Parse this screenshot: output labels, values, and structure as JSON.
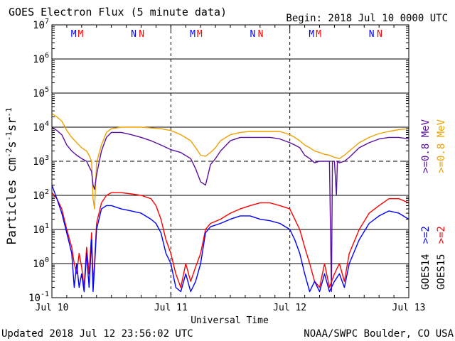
{
  "header": {
    "title": "GOES Electron Flux (5 minute data)",
    "begin": "Begin: 2018 Jul 10 0000 UTC"
  },
  "footer": {
    "updated": "Updated 2018 Jul 12 23:56:02 UTC",
    "credit": "NOAA/SWPC Boulder, CO USA"
  },
  "colors": {
    "goes14_ge0_8": "#5a0fa0",
    "goes15_ge0_8": "#f0a000",
    "goes14_ge2": "#0000ff",
    "goes15_ge2": "#ff0000",
    "axis": "#000000",
    "gridline": "#000000"
  },
  "chart_data": {
    "type": "line",
    "title": "GOES Electron Flux (5 minute data)",
    "xlabel": "Universal Time",
    "ylabel": "Particles cm-2s-1sr-1",
    "y_scale": "log",
    "ylim": [
      0.1,
      10000000
    ],
    "xlim": [
      0,
      72
    ],
    "x_unit": "hours since 2018 Jul 10 0000 UTC",
    "x_tick_labels": [
      {
        "x": 0,
        "label": "Jul 10"
      },
      {
        "x": 24,
        "label": "Jul 11"
      },
      {
        "x": 48,
        "label": "Jul 12"
      },
      {
        "x": 72,
        "label": "Jul 13"
      }
    ],
    "y_ticks": [
      {
        "value": 0.1,
        "base": "10",
        "exp": "-1"
      },
      {
        "value": 1,
        "base": "10",
        "exp": "0"
      },
      {
        "value": 10,
        "base": "10",
        "exp": "1"
      },
      {
        "value": 100,
        "base": "10",
        "exp": "2"
      },
      {
        "value": 1000,
        "base": "10",
        "exp": "3"
      },
      {
        "value": 10000,
        "base": "10",
        "exp": "4"
      },
      {
        "value": 100000,
        "base": "10",
        "exp": "5"
      },
      {
        "value": 1000000,
        "base": "10",
        "exp": "6"
      },
      {
        "value": 10000000,
        "base": "10",
        "exp": "7"
      }
    ],
    "grid": "horizontal solid at each decade; dashed at 10^3 alert threshold",
    "threshold_line": 1000,
    "day_boundaries_dashed": [
      24,
      48
    ],
    "markers": [
      {
        "x": 4.4,
        "letter": "M",
        "color": "#0000ff"
      },
      {
        "x": 5.8,
        "letter": "M",
        "color": "#ff0000"
      },
      {
        "x": 16.5,
        "letter": "N",
        "color": "#0000ff"
      },
      {
        "x": 18.1,
        "letter": "N",
        "color": "#ff0000"
      },
      {
        "x": 28.4,
        "letter": "M",
        "color": "#0000ff"
      },
      {
        "x": 29.8,
        "letter": "M",
        "color": "#ff0000"
      },
      {
        "x": 40.5,
        "letter": "N",
        "color": "#0000ff"
      },
      {
        "x": 42.1,
        "letter": "N",
        "color": "#ff0000"
      },
      {
        "x": 52.4,
        "letter": "M",
        "color": "#0000ff"
      },
      {
        "x": 53.8,
        "letter": "M",
        "color": "#ff0000"
      },
      {
        "x": 64.5,
        "letter": "N",
        "color": "#0000ff"
      },
      {
        "x": 66.1,
        "letter": "N",
        "color": "#ff0000"
      }
    ],
    "legend": {
      "position": "right side, vertical",
      "groups": [
        {
          "label": "GOES14",
          "entries": [
            {
              "label": ">=2",
              "color": "#0000ff"
            },
            {
              "label": ">=0.8 MeV",
              "color": "#5a0fa0"
            }
          ]
        },
        {
          "label": "GOES15",
          "entries": [
            {
              "label": ">=2",
              "color": "#ff0000"
            },
            {
              "label": ">=0.8 MeV",
              "color": "#f0a000"
            }
          ]
        }
      ]
    },
    "series": [
      {
        "name": "GOES15 >=0.8 MeV",
        "color": "#f0a000",
        "x": [
          0,
          1,
          2,
          3,
          4,
          5,
          6,
          7,
          7.5,
          8,
          8.3,
          8.6,
          9,
          10,
          11,
          12,
          14,
          16,
          18,
          20,
          22,
          24,
          26,
          28,
          29,
          30,
          31,
          32,
          33,
          34,
          36,
          38,
          40,
          42,
          44,
          46,
          48,
          49,
          50,
          51,
          52,
          53,
          54,
          55,
          56,
          57,
          58,
          59,
          60,
          62,
          64,
          66,
          68,
          70,
          72
        ],
        "y": [
          25000,
          20000,
          15000,
          8000,
          5000,
          3500,
          2500,
          2000,
          1500,
          1000,
          80,
          40,
          900,
          3000,
          7000,
          9000,
          10000,
          10000,
          10000,
          9500,
          9000,
          8000,
          6000,
          4000,
          2500,
          1500,
          1400,
          1800,
          2500,
          4000,
          6000,
          7000,
          7500,
          7500,
          7500,
          7500,
          6000,
          5000,
          4000,
          3000,
          2500,
          2000,
          1800,
          1600,
          1500,
          1300,
          1200,
          1500,
          2000,
          3500,
          5000,
          6500,
          7500,
          8500,
          9000
        ]
      },
      {
        "name": "GOES14 >=0.8 MeV",
        "color": "#5a0fa0",
        "x": [
          0,
          1,
          2,
          3,
          4,
          5,
          6,
          7,
          7.5,
          8,
          8.3,
          8.6,
          9,
          10,
          11,
          12,
          14,
          16,
          18,
          20,
          22,
          24,
          26,
          28,
          29,
          30,
          31,
          32,
          33,
          34,
          36,
          38,
          40,
          42,
          44,
          46,
          48,
          49,
          50,
          51,
          52,
          53,
          54,
          55,
          56,
          56.4,
          56.6,
          57,
          57.4,
          57.6,
          58,
          59,
          60,
          62,
          64,
          66,
          68,
          70,
          72
        ],
        "y": [
          10000,
          8000,
          6000,
          3000,
          2000,
          1500,
          1200,
          1000,
          700,
          500,
          200,
          150,
          400,
          2000,
          5000,
          7000,
          7000,
          6000,
          5000,
          4000,
          3000,
          2200,
          1800,
          1200,
          600,
          250,
          200,
          800,
          1200,
          2000,
          4000,
          5000,
          5000,
          5000,
          5000,
          4500,
          3500,
          3000,
          2500,
          1500,
          1200,
          900,
          1000,
          1000,
          1000,
          0.15,
          1000,
          1000,
          100,
          1000,
          900,
          1000,
          1300,
          2500,
          3500,
          4500,
          5000,
          5000,
          4500
        ]
      },
      {
        "name": "GOES15 >=2",
        "color": "#ff0000",
        "x": [
          0,
          1,
          2,
          3,
          4,
          4.5,
          5,
          5.5,
          6,
          6.5,
          7,
          7.5,
          8,
          8.3,
          8.6,
          9,
          10,
          11,
          12,
          14,
          16,
          18,
          20,
          21,
          22,
          23,
          24,
          25,
          26,
          27,
          28,
          29,
          30,
          31,
          32,
          34,
          36,
          38,
          40,
          42,
          44,
          46,
          48,
          49,
          50,
          51,
          52,
          53,
          54,
          55,
          56,
          57,
          58,
          59,
          60,
          62,
          64,
          66,
          68,
          70,
          72
        ],
        "y": [
          120,
          80,
          40,
          10,
          3,
          1,
          0.5,
          2,
          0.8,
          0.2,
          3,
          0.5,
          8,
          0.3,
          1,
          15,
          60,
          100,
          120,
          120,
          110,
          100,
          80,
          50,
          20,
          5,
          2,
          0.5,
          0.2,
          1,
          0.3,
          0.8,
          2,
          10,
          15,
          20,
          30,
          40,
          50,
          60,
          60,
          50,
          40,
          20,
          10,
          3,
          1,
          0.3,
          0.2,
          1,
          0.2,
          0.5,
          1,
          0.3,
          2,
          10,
          30,
          50,
          80,
          80,
          60
        ]
      },
      {
        "name": "GOES14 >=2",
        "color": "#0000ff",
        "x": [
          0,
          1,
          2,
          3,
          4,
          4.5,
          5,
          5.5,
          6,
          6.5,
          7,
          7.5,
          8,
          8.3,
          8.6,
          9,
          10,
          11,
          12,
          14,
          16,
          18,
          20,
          21,
          22,
          23,
          24,
          25,
          26,
          27,
          28,
          29,
          30,
          31,
          32,
          34,
          36,
          38,
          40,
          42,
          44,
          46,
          48,
          49,
          50,
          51,
          52,
          53,
          54,
          55,
          56,
          57,
          58,
          59,
          60,
          62,
          64,
          66,
          68,
          70,
          72
        ],
        "y": [
          200,
          80,
          30,
          8,
          2,
          0.2,
          1,
          0.2,
          0.5,
          0.15,
          2,
          0.2,
          5,
          0.15,
          0.8,
          10,
          40,
          50,
          50,
          40,
          35,
          30,
          20,
          15,
          8,
          2,
          1,
          0.2,
          0.15,
          0.5,
          0.15,
          0.3,
          1,
          8,
          12,
          15,
          20,
          25,
          25,
          20,
          18,
          15,
          10,
          5,
          2,
          0.5,
          0.15,
          0.3,
          0.15,
          0.5,
          0.15,
          0.3,
          0.5,
          0.2,
          1,
          5,
          15,
          25,
          35,
          30,
          20
        ]
      }
    ]
  }
}
